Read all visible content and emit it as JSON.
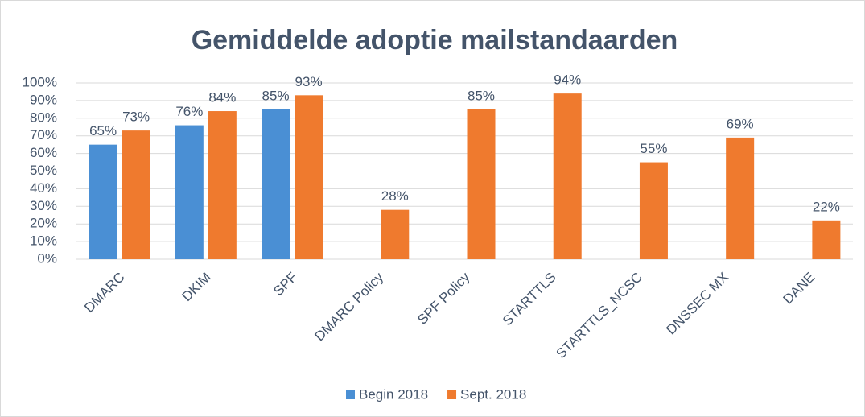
{
  "chart_data": {
    "type": "bar",
    "title": "Gemiddelde adoptie mailstandaarden",
    "categories": [
      "DMARC",
      "DKIM",
      "SPF",
      "DMARC Policy",
      "SPF Policy",
      "STARTTLS",
      "STARTTLS_NCSC",
      "DNSSEC MX",
      "DANE"
    ],
    "series": [
      {
        "name": "Begin 2018",
        "color": "#4a8fd4",
        "values": [
          65,
          76,
          85,
          null,
          null,
          null,
          null,
          null,
          null
        ],
        "value_labels": [
          "65%",
          "76%",
          "85%",
          null,
          null,
          null,
          null,
          null,
          null
        ]
      },
      {
        "name": "Sept. 2018",
        "color": "#ef7a2e",
        "values": [
          73,
          84,
          93,
          28,
          85,
          94,
          55,
          69,
          22
        ],
        "value_labels": [
          "73%",
          "84%",
          "93%",
          "28%",
          "85%",
          "94%",
          "55%",
          "69%",
          "22%"
        ]
      }
    ],
    "ylim": [
      0,
      100
    ],
    "yticks": [
      {
        "value": 0,
        "label": "0%"
      },
      {
        "value": 10,
        "label": "10%"
      },
      {
        "value": 20,
        "label": "20%"
      },
      {
        "value": 30,
        "label": "30%"
      },
      {
        "value": 40,
        "label": "40%"
      },
      {
        "value": 50,
        "label": "50%"
      },
      {
        "value": 60,
        "label": "60%"
      },
      {
        "value": 70,
        "label": "70%"
      },
      {
        "value": 80,
        "label": "80%"
      },
      {
        "value": 90,
        "label": "90%"
      },
      {
        "value": 100,
        "label": "100%"
      }
    ],
    "grid": true,
    "legend": "bottom"
  }
}
